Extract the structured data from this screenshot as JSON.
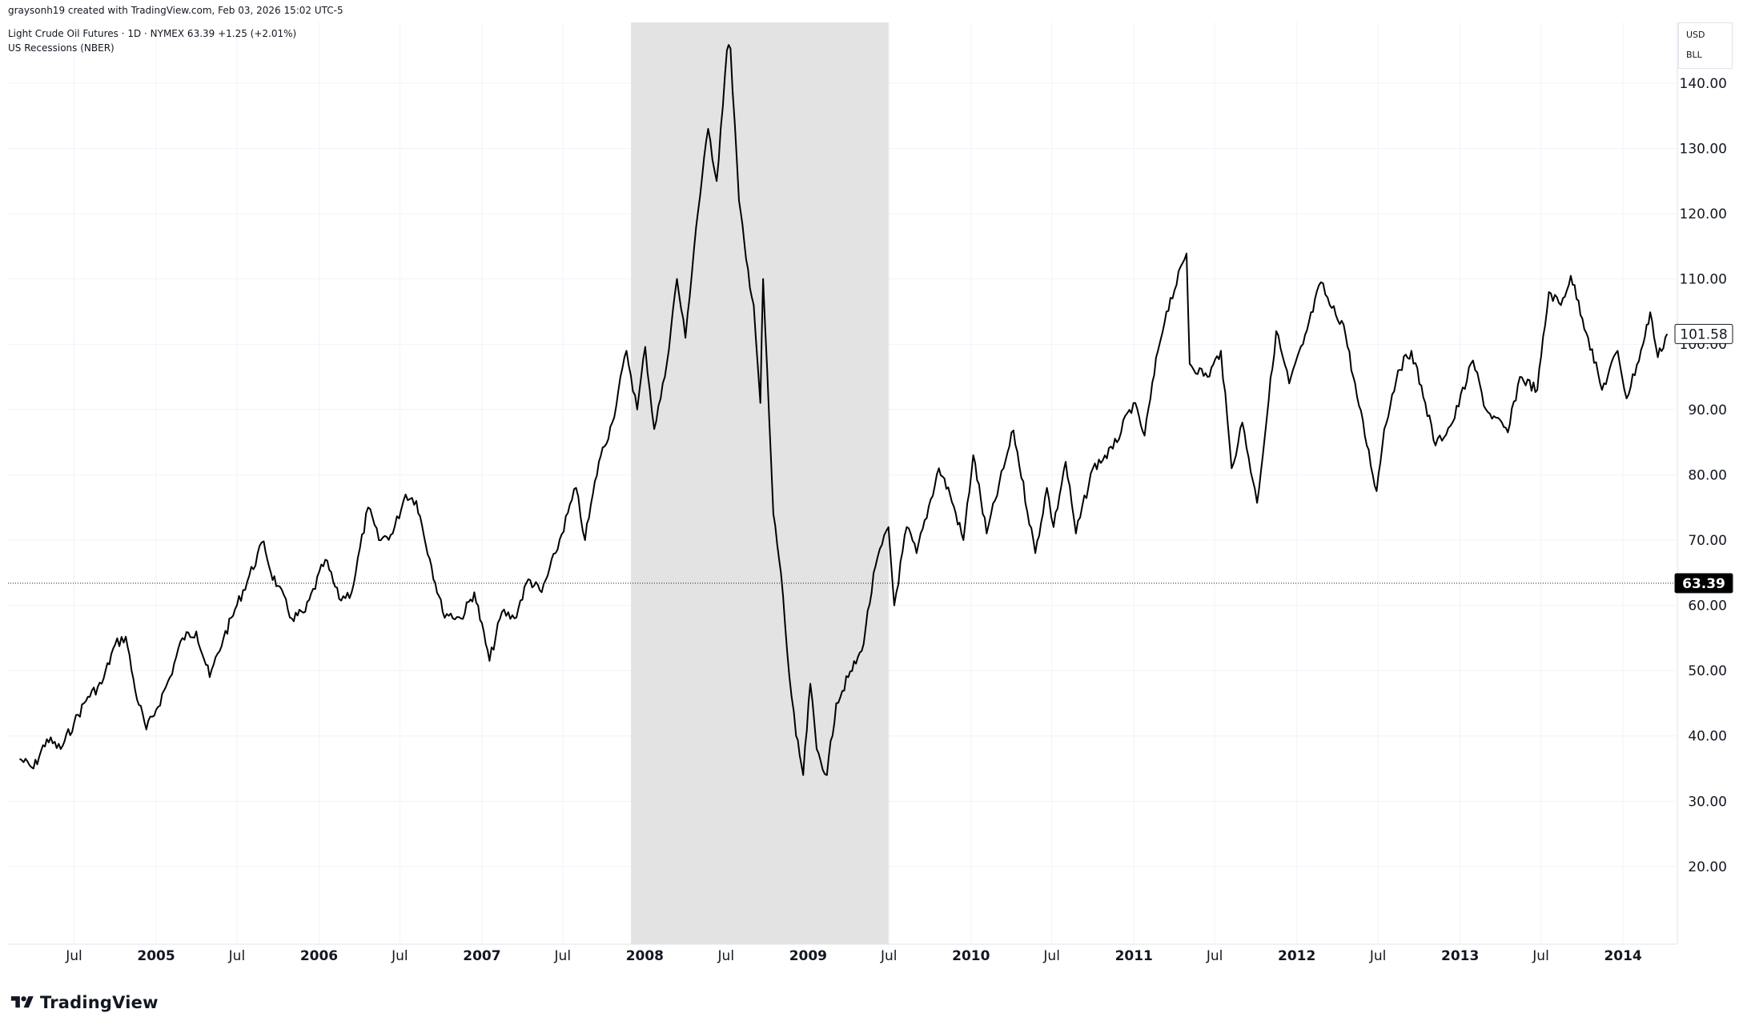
{
  "header": {
    "credit": "graysonh19 created with TradingView.com, Feb 03, 2026 15:02 UTC-5",
    "legend_main": "Light Crude Oil Futures · 1D · NYMEX  63.39  +1.25 (+2.01%)",
    "legend_sub": "US Recessions (NBER)"
  },
  "currency_box": {
    "currency": "USD",
    "unit": "BLL"
  },
  "branding": {
    "logo_text": "TradingView"
  },
  "colors": {
    "line": "#000000",
    "recession": "#e3e3e3",
    "grid": "#f0f3fa",
    "label_bg_current": "#000000",
    "label_fg_current": "#ffffff"
  },
  "chart_data": {
    "type": "line",
    "title": "Light Crude Oil Futures · 1D · NYMEX",
    "series": [
      {
        "name": "Light Crude Oil Futures",
        "points": [
          [
            "2004-03-01",
            36.5
          ],
          [
            "2004-04-01",
            35.0
          ],
          [
            "2004-05-01",
            39.5
          ],
          [
            "2004-06-01",
            38.0
          ],
          [
            "2004-07-01",
            42.0
          ],
          [
            "2004-08-01",
            46.0
          ],
          [
            "2004-09-01",
            48.0
          ],
          [
            "2004-10-01",
            54.0
          ],
          [
            "2004-10-25",
            55.2
          ],
          [
            "2004-11-15",
            47.0
          ],
          [
            "2004-12-10",
            41.0
          ],
          [
            "2005-01-01",
            44.0
          ],
          [
            "2005-02-01",
            49.0
          ],
          [
            "2005-03-01",
            55.0
          ],
          [
            "2005-04-01",
            56.0
          ],
          [
            "2005-05-01",
            49.0
          ],
          [
            "2005-06-01",
            55.0
          ],
          [
            "2005-07-01",
            60.0
          ],
          [
            "2005-08-30",
            69.8
          ],
          [
            "2005-09-15",
            65.0
          ],
          [
            "2005-10-01",
            63.0
          ],
          [
            "2005-11-01",
            58.0
          ],
          [
            "2005-12-01",
            59.0
          ],
          [
            "2006-01-15",
            67.0
          ],
          [
            "2006-02-15",
            61.0
          ],
          [
            "2006-03-15",
            62.0
          ],
          [
            "2006-04-21",
            75.0
          ],
          [
            "2006-05-15",
            70.0
          ],
          [
            "2006-06-15",
            71.0
          ],
          [
            "2006-07-14",
            77.0
          ],
          [
            "2006-08-07",
            76.0
          ],
          [
            "2006-09-10",
            66.0
          ],
          [
            "2006-10-05",
            59.0
          ],
          [
            "2006-11-15",
            58.0
          ],
          [
            "2006-12-15",
            62.0
          ],
          [
            "2007-01-18",
            51.5
          ],
          [
            "2007-02-15",
            59.0
          ],
          [
            "2007-03-15",
            58.0
          ],
          [
            "2007-04-15",
            64.0
          ],
          [
            "2007-05-15",
            62.0
          ],
          [
            "2007-06-15",
            68.0
          ],
          [
            "2007-07-31",
            78.0
          ],
          [
            "2007-08-20",
            70.0
          ],
          [
            "2007-09-20",
            82.0
          ],
          [
            "2007-10-20",
            88.0
          ],
          [
            "2007-11-21",
            99.0
          ],
          [
            "2007-12-15",
            90.0
          ],
          [
            "2008-01-02",
            99.6
          ],
          [
            "2008-01-22",
            87.0
          ],
          [
            "2008-02-15",
            95.0
          ],
          [
            "2008-03-13",
            110.0
          ],
          [
            "2008-04-01",
            101.0
          ],
          [
            "2008-04-25",
            118.0
          ],
          [
            "2008-05-22",
            133.0
          ],
          [
            "2008-06-10",
            125.0
          ],
          [
            "2008-07-03",
            145.0
          ],
          [
            "2008-07-11",
            145.3
          ],
          [
            "2008-07-30",
            122.0
          ],
          [
            "2008-08-15",
            113.0
          ],
          [
            "2008-09-01",
            106.0
          ],
          [
            "2008-09-16",
            91.0
          ],
          [
            "2008-09-22",
            110.0
          ],
          [
            "2008-10-15",
            74.0
          ],
          [
            "2008-11-01",
            65.0
          ],
          [
            "2008-11-20",
            49.0
          ],
          [
            "2008-12-05",
            40.0
          ],
          [
            "2008-12-21",
            34.0
          ],
          [
            "2009-01-06",
            48.0
          ],
          [
            "2009-01-20",
            38.0
          ],
          [
            "2009-02-12",
            34.0
          ],
          [
            "2009-03-05",
            45.0
          ],
          [
            "2009-04-01",
            49.0
          ],
          [
            "2009-05-01",
            53.0
          ],
          [
            "2009-06-01",
            66.0
          ],
          [
            "2009-06-30",
            72.0
          ],
          [
            "2009-07-13",
            60.0
          ],
          [
            "2009-08-10",
            72.0
          ],
          [
            "2009-09-01",
            68.0
          ],
          [
            "2009-10-21",
            81.0
          ],
          [
            "2009-11-15",
            77.0
          ],
          [
            "2009-12-15",
            70.0
          ],
          [
            "2010-01-06",
            83.0
          ],
          [
            "2010-02-05",
            71.0
          ],
          [
            "2010-03-15",
            81.0
          ],
          [
            "2010-04-06",
            86.8
          ],
          [
            "2010-05-25",
            68.0
          ],
          [
            "2010-06-20",
            78.0
          ],
          [
            "2010-07-05",
            72.0
          ],
          [
            "2010-08-01",
            82.0
          ],
          [
            "2010-08-24",
            71.0
          ],
          [
            "2010-10-01",
            81.0
          ],
          [
            "2010-11-15",
            84.0
          ],
          [
            "2010-12-31",
            91.0
          ],
          [
            "2011-01-25",
            86.0
          ],
          [
            "2011-02-24",
            99.0
          ],
          [
            "2011-03-15",
            105.0
          ],
          [
            "2011-04-29",
            113.9
          ],
          [
            "2011-05-06",
            97.0
          ],
          [
            "2011-06-15",
            95.0
          ],
          [
            "2011-07-15",
            99.0
          ],
          [
            "2011-08-08",
            81.0
          ],
          [
            "2011-09-01",
            88.0
          ],
          [
            "2011-10-04",
            75.7
          ],
          [
            "2011-11-16",
            102.0
          ],
          [
            "2011-12-15",
            94.0
          ],
          [
            "2012-01-15",
            100.0
          ],
          [
            "2012-02-24",
            109.5
          ],
          [
            "2012-03-15",
            106.0
          ],
          [
            "2012-04-15",
            103.0
          ],
          [
            "2012-05-15",
            92.0
          ],
          [
            "2012-06-28",
            77.5
          ],
          [
            "2012-07-15",
            87.0
          ],
          [
            "2012-08-15",
            96.0
          ],
          [
            "2012-09-14",
            99.0
          ],
          [
            "2012-10-15",
            91.0
          ],
          [
            "2012-11-07",
            84.5
          ],
          [
            "2012-12-15",
            88.0
          ],
          [
            "2013-01-30",
            97.5
          ],
          [
            "2013-02-28",
            90.0
          ],
          [
            "2013-04-18",
            86.5
          ],
          [
            "2013-05-15",
            95.0
          ],
          [
            "2013-06-23",
            93.0
          ],
          [
            "2013-07-19",
            108.0
          ],
          [
            "2013-08-15",
            106.0
          ],
          [
            "2013-09-06",
            110.5
          ],
          [
            "2013-10-15",
            101.0
          ],
          [
            "2013-11-15",
            93.0
          ],
          [
            "2013-12-20",
            99.0
          ],
          [
            "2014-01-09",
            91.7
          ],
          [
            "2014-02-15",
            100.0
          ],
          [
            "2014-03-03",
            104.9
          ],
          [
            "2014-03-20",
            98.0
          ],
          [
            "2014-04-10",
            101.58
          ]
        ]
      }
    ],
    "recession_shading": {
      "start": "2007-12-01",
      "end": "2009-06-30",
      "label": "US Recessions (NBER)"
    },
    "x_axis": {
      "range": [
        "2004-02-04",
        "2014-05-01"
      ],
      "ticks": [
        {
          "date": "2004-07-01",
          "label": "Jul",
          "bold": false
        },
        {
          "date": "2005-01-01",
          "label": "2005",
          "bold": true
        },
        {
          "date": "2005-07-01",
          "label": "Jul",
          "bold": false
        },
        {
          "date": "2006-01-01",
          "label": "2006",
          "bold": true
        },
        {
          "date": "2006-07-01",
          "label": "Jul",
          "bold": false
        },
        {
          "date": "2007-01-01",
          "label": "2007",
          "bold": true
        },
        {
          "date": "2007-07-01",
          "label": "Jul",
          "bold": false
        },
        {
          "date": "2008-01-01",
          "label": "2008",
          "bold": true
        },
        {
          "date": "2008-07-01",
          "label": "Jul",
          "bold": false
        },
        {
          "date": "2009-01-01",
          "label": "2009",
          "bold": true
        },
        {
          "date": "2009-07-01",
          "label": "Jul",
          "bold": false
        },
        {
          "date": "2010-01-01",
          "label": "2010",
          "bold": true
        },
        {
          "date": "2010-07-01",
          "label": "Jul",
          "bold": false
        },
        {
          "date": "2011-01-01",
          "label": "2011",
          "bold": true
        },
        {
          "date": "2011-07-01",
          "label": "Jul",
          "bold": false
        },
        {
          "date": "2012-01-01",
          "label": "2012",
          "bold": true
        },
        {
          "date": "2012-07-01",
          "label": "Jul",
          "bold": false
        },
        {
          "date": "2013-01-01",
          "label": "2013",
          "bold": true
        },
        {
          "date": "2013-07-01",
          "label": "Jul",
          "bold": false
        },
        {
          "date": "2014-01-01",
          "label": "2014",
          "bold": true
        }
      ]
    },
    "y_axis": {
      "range": [
        8.1,
        149.3
      ],
      "ticks": [
        {
          "value": 20,
          "label": "20.00"
        },
        {
          "value": 30,
          "label": "30.00"
        },
        {
          "value": 40,
          "label": "40.00"
        },
        {
          "value": 50,
          "label": "50.00"
        },
        {
          "value": 60,
          "label": "60.00"
        },
        {
          "value": 70,
          "label": "70.00"
        },
        {
          "value": 80,
          "label": "80.00"
        },
        {
          "value": 90,
          "label": "90.00"
        },
        {
          "value": 100,
          "label": "100.00"
        },
        {
          "value": 110,
          "label": "110.00"
        },
        {
          "value": 120,
          "label": "120.00"
        },
        {
          "value": 130,
          "label": "130.00"
        },
        {
          "value": 140,
          "label": "140.00"
        }
      ]
    },
    "price_labels": [
      {
        "value": 101.58,
        "label": "101.58",
        "style": "last"
      },
      {
        "value": 63.39,
        "label": "63.39",
        "style": "current"
      }
    ],
    "current_price_line": 63.39,
    "grid": true
  }
}
